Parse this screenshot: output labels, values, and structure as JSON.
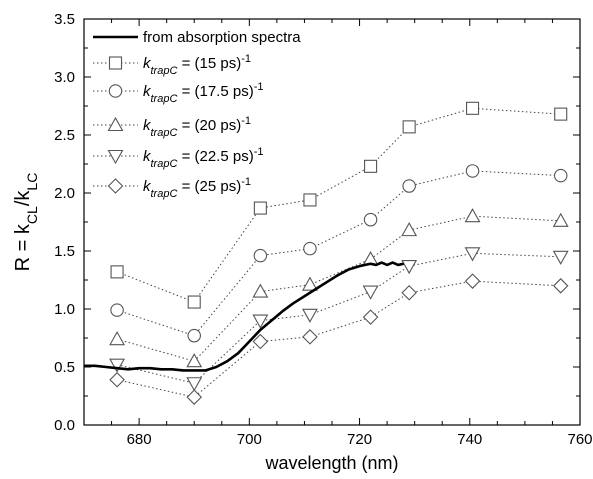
{
  "chart_data": {
    "type": "line",
    "xlabel": "wavelength (nm)",
    "ylabel": {
      "prefix": "R = k",
      "sub1": "CL",
      "mid": "/k",
      "sub2": "LC"
    },
    "xlim": [
      670,
      760
    ],
    "ylim": [
      0.0,
      3.5
    ],
    "xticks": [
      680,
      700,
      720,
      740,
      760
    ],
    "yticks": [
      "0.0",
      "0.5",
      "1.0",
      "1.5",
      "2.0",
      "2.5",
      "3.0",
      "3.5"
    ],
    "x_minor_step": 5,
    "y_minor_step": 0.25,
    "grid": false,
    "legend_position": "top-left",
    "legend": [
      {
        "type": "line",
        "label": "from absorption spectra"
      },
      {
        "type": "marker",
        "marker": "square",
        "k": "k",
        "sub": "trapC",
        "text": " = (15 ps)",
        "sup": "-1"
      },
      {
        "type": "marker",
        "marker": "circle",
        "k": "k",
        "sub": "trapC",
        "text": " = (17.5 ps)",
        "sup": "-1"
      },
      {
        "type": "marker",
        "marker": "triangle-up",
        "k": "k",
        "sub": "trapC",
        "text": " = (20 ps)",
        "sup": "-1"
      },
      {
        "type": "marker",
        "marker": "triangle-down",
        "k": "k",
        "sub": "trapC",
        "text": " = (22.5 ps)",
        "sup": "-1"
      },
      {
        "type": "marker",
        "marker": "diamond",
        "k": "k",
        "sub": "trapC",
        "text": " = (25 ps)",
        "sup": "-1"
      }
    ],
    "x": [
      676,
      690,
      702,
      711,
      722,
      729,
      740.5,
      756.5
    ],
    "series": [
      {
        "marker": "square",
        "values": [
          1.32,
          1.06,
          1.87,
          1.94,
          2.23,
          2.57,
          2.73,
          2.68
        ]
      },
      {
        "marker": "circle",
        "values": [
          0.99,
          0.77,
          1.46,
          1.52,
          1.77,
          2.06,
          2.19,
          2.15
        ]
      },
      {
        "marker": "triangle-up",
        "values": [
          0.74,
          0.55,
          1.15,
          1.21,
          1.43,
          1.68,
          1.8,
          1.76
        ]
      },
      {
        "marker": "triangle-down",
        "values": [
          0.52,
          0.36,
          0.9,
          0.95,
          1.15,
          1.37,
          1.48,
          1.45
        ]
      },
      {
        "marker": "diamond",
        "values": [
          0.39,
          0.24,
          0.72,
          0.76,
          0.93,
          1.14,
          1.24,
          1.2
        ]
      }
    ],
    "spectrum_curve": [
      [
        670,
        0.51
      ],
      [
        672,
        0.51
      ],
      [
        674,
        0.5
      ],
      [
        676,
        0.49
      ],
      [
        678,
        0.48
      ],
      [
        680,
        0.49
      ],
      [
        682,
        0.49
      ],
      [
        684,
        0.48
      ],
      [
        686,
        0.48
      ],
      [
        688,
        0.47
      ],
      [
        690,
        0.47
      ],
      [
        692,
        0.47
      ],
      [
        694,
        0.5
      ],
      [
        696,
        0.55
      ],
      [
        698,
        0.62
      ],
      [
        700,
        0.72
      ],
      [
        702,
        0.82
      ],
      [
        704,
        0.9
      ],
      [
        706,
        0.98
      ],
      [
        708,
        1.05
      ],
      [
        710,
        1.11
      ],
      [
        712,
        1.17
      ],
      [
        714,
        1.23
      ],
      [
        716,
        1.29
      ],
      [
        718,
        1.34
      ],
      [
        720,
        1.37
      ],
      [
        722,
        1.39
      ],
      [
        723,
        1.38
      ],
      [
        724,
        1.4
      ],
      [
        725,
        1.38
      ],
      [
        726,
        1.4
      ],
      [
        727,
        1.38
      ],
      [
        728,
        1.39
      ]
    ]
  }
}
